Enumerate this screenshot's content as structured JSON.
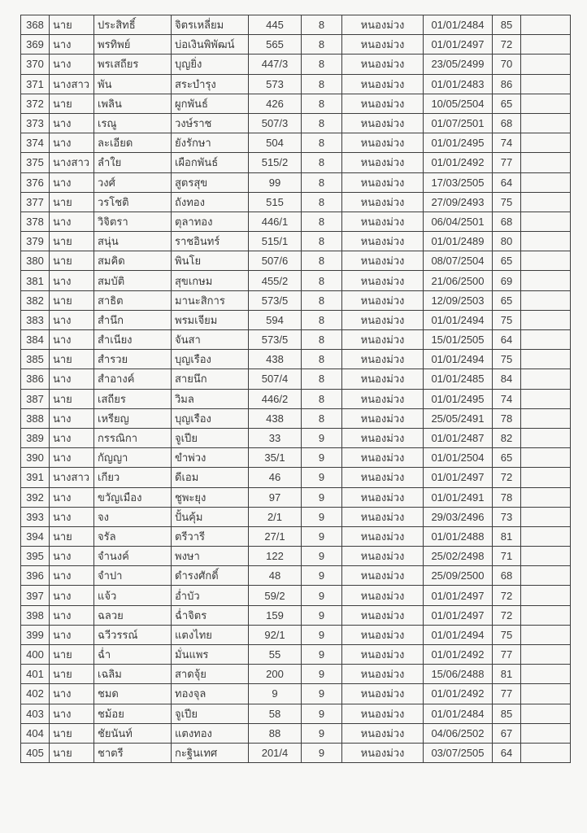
{
  "table": {
    "rows": [
      [
        "368",
        "นาย",
        "ประสิทธิ์",
        "จิตรเหลี่ยม",
        "445",
        "8",
        "หนองม่วง",
        "01/01/2484",
        "85",
        ""
      ],
      [
        "369",
        "นาง",
        "พรทิพย์",
        "บ่อเงินพิพัฒน์",
        "565",
        "8",
        "หนองม่วง",
        "01/01/2497",
        "72",
        ""
      ],
      [
        "370",
        "นาง",
        "พรเสถียร",
        "บุญยิ่ง",
        "447/3",
        "8",
        "หนองม่วง",
        "23/05/2499",
        "70",
        ""
      ],
      [
        "371",
        "นางสาว",
        "พัน",
        "สระบำรุง",
        "573",
        "8",
        "หนองม่วง",
        "01/01/2483",
        "86",
        ""
      ],
      [
        "372",
        "นาย",
        "เพลิน",
        "ผูกพันธ์",
        "426",
        "8",
        "หนองม่วง",
        "10/05/2504",
        "65",
        ""
      ],
      [
        "373",
        "นาง",
        "เรณู",
        "วงษ์ราช",
        "507/3",
        "8",
        "หนองม่วง",
        "01/07/2501",
        "68",
        ""
      ],
      [
        "374",
        "นาง",
        "ละเอียด",
        "ยังรักษา",
        "504",
        "8",
        "หนองม่วง",
        "01/01/2495",
        "74",
        ""
      ],
      [
        "375",
        "นางสาว",
        "ลำใย",
        "เผือกพันธ์",
        "515/2",
        "8",
        "หนองม่วง",
        "01/01/2492",
        "77",
        ""
      ],
      [
        "376",
        "นาง",
        "วงศ์",
        "สูตรสุข",
        "99",
        "8",
        "หนองม่วง",
        "17/03/2505",
        "64",
        ""
      ],
      [
        "377",
        "นาย",
        "วรโชติ",
        "ถังทอง",
        "515",
        "8",
        "หนองม่วง",
        "27/09/2493",
        "75",
        ""
      ],
      [
        "378",
        "นาง",
        "วิจิตรา",
        "ตุลาทอง",
        "446/1",
        "8",
        "หนองม่วง",
        "06/04/2501",
        "68",
        ""
      ],
      [
        "379",
        "นาย",
        "สนุ่น",
        "ราชอินทร์",
        "515/1",
        "8",
        "หนองม่วง",
        "01/01/2489",
        "80",
        ""
      ],
      [
        "380",
        "นาย",
        "สมคิด",
        "พินโย",
        "507/6",
        "8",
        "หนองม่วง",
        "08/07/2504",
        "65",
        ""
      ],
      [
        "381",
        "นาง",
        "สมบัติ",
        "สุขเกษม",
        "455/2",
        "8",
        "หนองม่วง",
        "21/06/2500",
        "69",
        ""
      ],
      [
        "382",
        "นาย",
        "สาธิต",
        "มานะสิการ",
        "573/5",
        "8",
        "หนองม่วง",
        "12/09/2503",
        "65",
        ""
      ],
      [
        "383",
        "นาง",
        "สำนึก",
        "พรมเจียม",
        "594",
        "8",
        "หนองม่วง",
        "01/01/2494",
        "75",
        ""
      ],
      [
        "384",
        "นาง",
        "สำเนียง",
        "จันสา",
        "573/5",
        "8",
        "หนองม่วง",
        "15/01/2505",
        "64",
        ""
      ],
      [
        "385",
        "นาย",
        "สำรวย",
        "บุญเรือง",
        "438",
        "8",
        "หนองม่วง",
        "01/01/2494",
        "75",
        ""
      ],
      [
        "386",
        "นาง",
        "สำอางค์",
        "สายนึก",
        "507/4",
        "8",
        "หนองม่วง",
        "01/01/2485",
        "84",
        ""
      ],
      [
        "387",
        "นาย",
        "เสถียร",
        "วิมล",
        "446/2",
        "8",
        "หนองม่วง",
        "01/01/2495",
        "74",
        ""
      ],
      [
        "388",
        "นาง",
        "เหรียญ",
        "บุญเรือง",
        "438",
        "8",
        "หนองม่วง",
        "25/05/2491",
        "78",
        ""
      ],
      [
        "389",
        "นาง",
        "กรรณิกา",
        "จูเปีย",
        "33",
        "9",
        "หนองม่วง",
        "01/01/2487",
        "82",
        ""
      ],
      [
        "390",
        "นาง",
        "กัญญา",
        "ขำพ่วง",
        "35/1",
        "9",
        "หนองม่วง",
        "01/01/2504",
        "65",
        ""
      ],
      [
        "391",
        "นางสาว",
        "เกียว",
        "ดีเอม",
        "46",
        "9",
        "หนองม่วง",
        "01/01/2497",
        "72",
        ""
      ],
      [
        "392",
        "นาง",
        "ขวัญเมือง",
        "ชูพะยุง",
        "97",
        "9",
        "หนองม่วง",
        "01/01/2491",
        "78",
        ""
      ],
      [
        "393",
        "นาง",
        "จง",
        "ปั้นคุ้ม",
        "2/1",
        "9",
        "หนองม่วง",
        "29/03/2496",
        "73",
        ""
      ],
      [
        "394",
        "นาย",
        "จรัล",
        "ตรีวารี",
        "27/1",
        "9",
        "หนองม่วง",
        "01/01/2488",
        "81",
        ""
      ],
      [
        "395",
        "นาง",
        "จำนงค์",
        "พงษา",
        "122",
        "9",
        "หนองม่วง",
        "25/02/2498",
        "71",
        ""
      ],
      [
        "396",
        "นาง",
        "จำปา",
        "ดำรงศักดิ์",
        "48",
        "9",
        "หนองม่วง",
        "25/09/2500",
        "68",
        ""
      ],
      [
        "397",
        "นาง",
        "แจ้ว",
        "อ่ำบัว",
        "59/2",
        "9",
        "หนองม่วง",
        "01/01/2497",
        "72",
        ""
      ],
      [
        "398",
        "นาง",
        "ฉลวย",
        "ฉ่ำจิตร",
        "159",
        "9",
        "หนองม่วง",
        "01/01/2497",
        "72",
        ""
      ],
      [
        "399",
        "นาง",
        "ฉวีวรรณ์",
        "แตงไทย",
        "92/1",
        "9",
        "หนองม่วง",
        "01/01/2494",
        "75",
        ""
      ],
      [
        "400",
        "นาย",
        "ฉ่ำ",
        "มั่นแพร",
        "55",
        "9",
        "หนองม่วง",
        "01/01/2492",
        "77",
        ""
      ],
      [
        "401",
        "นาย",
        "เฉลิม",
        "สาดจุ้ย",
        "200",
        "9",
        "หนองม่วง",
        "15/06/2488",
        "81",
        ""
      ],
      [
        "402",
        "นาง",
        "ชมด",
        "ทองจุล",
        "9",
        "9",
        "หนองม่วง",
        "01/01/2492",
        "77",
        ""
      ],
      [
        "403",
        "นาง",
        "ชม้อย",
        "จูเปีย",
        "58",
        "9",
        "หนองม่วง",
        "01/01/2484",
        "85",
        ""
      ],
      [
        "404",
        "นาย",
        "ชัยนันท์",
        "แตงทอง",
        "88",
        "9",
        "หนองม่วง",
        "04/06/2502",
        "67",
        ""
      ],
      [
        "405",
        "นาย",
        "ชาตรี",
        "กะฐินเทศ",
        "201/4",
        "9",
        "หนองม่วง",
        "03/07/2505",
        "64",
        ""
      ]
    ]
  }
}
